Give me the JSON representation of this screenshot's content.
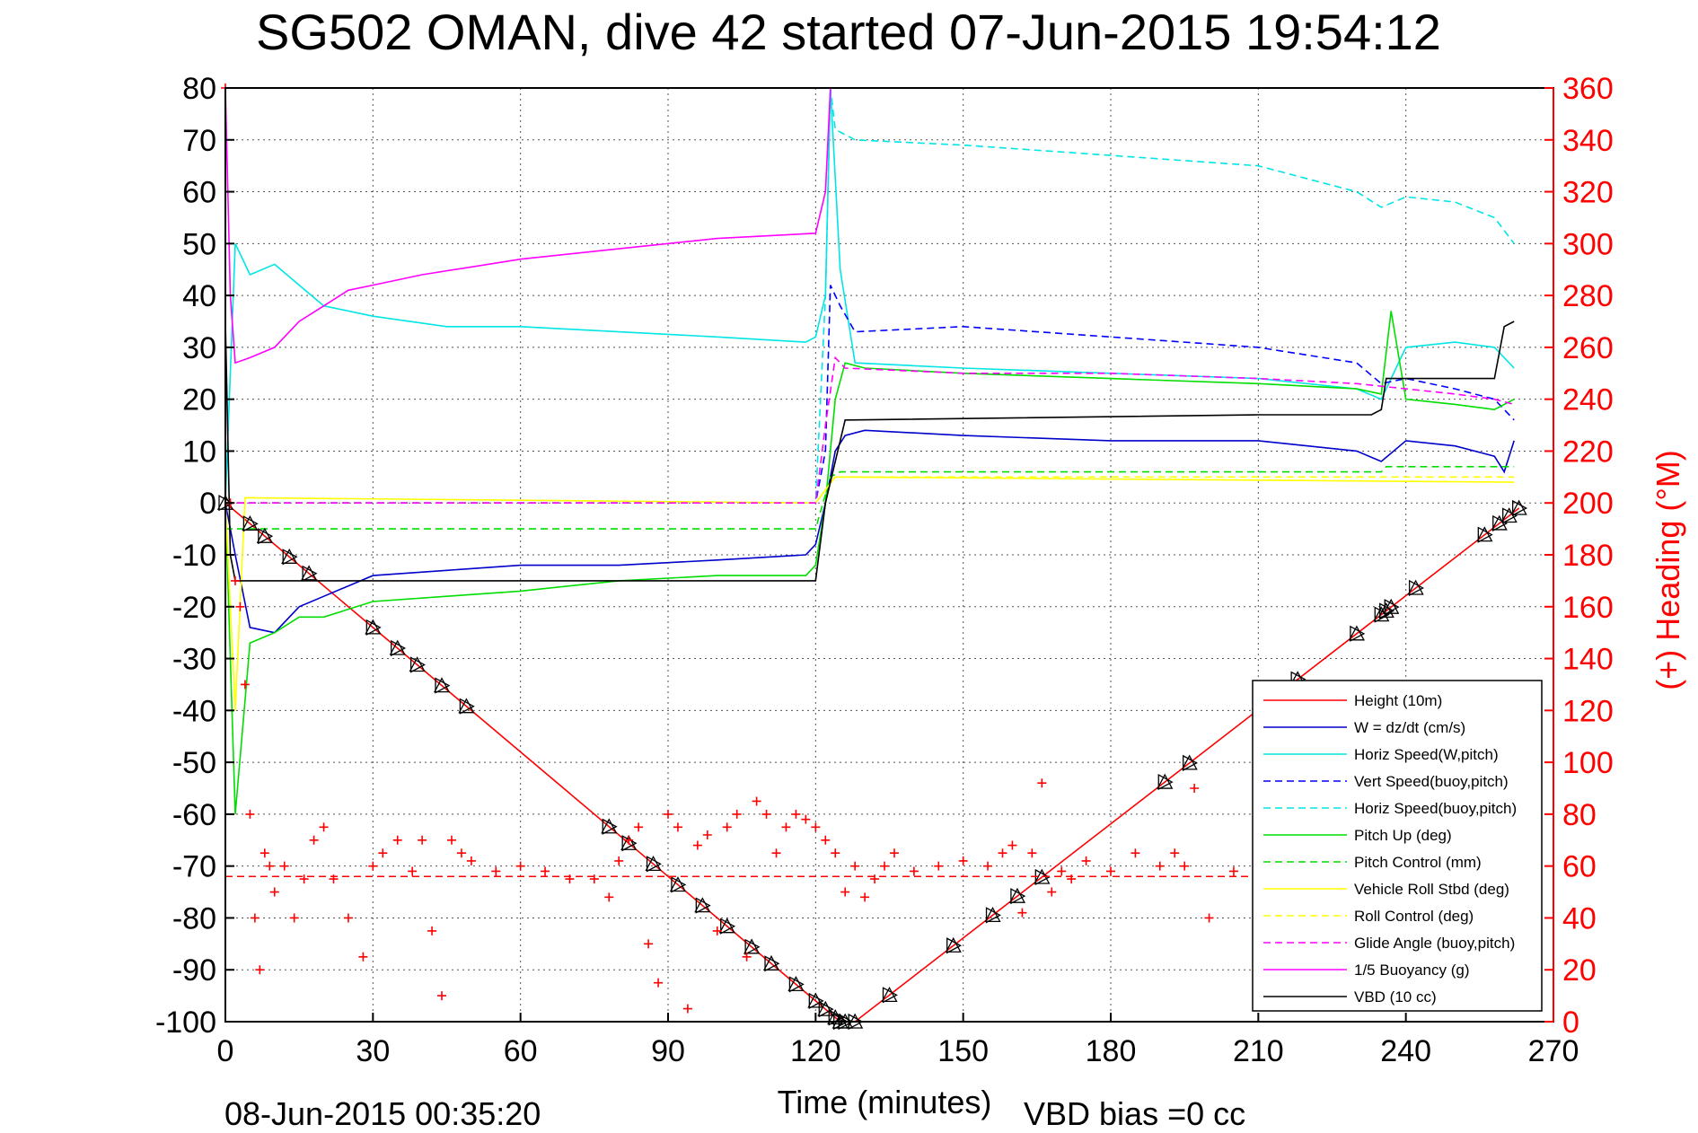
{
  "chart_data": {
    "type": "line",
    "title": "SG502 OMAN, dive 42 started 07-Jun-2015 19:54:12",
    "xlabel": "Time (minutes)",
    "ylabel_right": "(+) Heading (°M)",
    "footer_left": "08-Jun-2015 00:35:20",
    "footer_right": "VBD bias =0 cc",
    "xlim": [
      0,
      270
    ],
    "ylim": [
      -100,
      80
    ],
    "ylim_right": [
      0,
      360
    ],
    "x_ticks": [
      "0",
      "30",
      "60",
      "90",
      "120",
      "150",
      "180",
      "210",
      "240",
      "270"
    ],
    "y_ticks": [
      "80",
      "70",
      "60",
      "50",
      "40",
      "30",
      "20",
      "10",
      "0",
      "-10",
      "-20",
      "-30",
      "-40",
      "-50",
      "-60",
      "-70",
      "-80",
      "-90",
      "-100"
    ],
    "y_right_ticks": [
      "360",
      "340",
      "320",
      "300",
      "280",
      "260",
      "240",
      "220",
      "200",
      "180",
      "160",
      "140",
      "120",
      "100",
      "80",
      "60",
      "40",
      "20",
      "0"
    ],
    "grid": true,
    "legend_position": "lower-right",
    "series": [
      {
        "name": "Height (10m)",
        "color": "#ff0000",
        "style": "solid",
        "x": [
          0,
          125,
          128,
          263
        ],
        "y": [
          0,
          -100,
          -100,
          -1
        ]
      },
      {
        "name": "W = dz/dt (cm/s)",
        "color": "#0000cc",
        "style": "solid",
        "x": [
          0,
          2,
          5,
          10,
          15,
          20,
          30,
          45,
          60,
          80,
          100,
          118,
          120,
          122,
          124,
          126,
          130,
          150,
          180,
          210,
          230,
          235,
          240,
          250,
          258,
          260,
          262
        ],
        "y": [
          0,
          -10,
          -24,
          -25,
          -20,
          -18,
          -14,
          -13,
          -12,
          -12,
          -11,
          -10,
          -8,
          0,
          10,
          13,
          14,
          13,
          12,
          12,
          10,
          8,
          12,
          11,
          9,
          6,
          12
        ]
      },
      {
        "name": "Horiz Speed(W,pitch)",
        "color": "#00e5e5",
        "style": "solid",
        "x": [
          0,
          2,
          5,
          10,
          15,
          20,
          30,
          45,
          60,
          80,
          100,
          118,
          120,
          122,
          123,
          125,
          128,
          150,
          180,
          210,
          230,
          235,
          240,
          250,
          258,
          262
        ],
        "y": [
          0,
          50,
          44,
          46,
          42,
          38,
          36,
          34,
          34,
          33,
          32,
          31,
          32,
          40,
          80,
          45,
          27,
          26,
          25,
          24,
          22,
          20,
          30,
          31,
          30,
          26
        ]
      },
      {
        "name": "Vert Speed(buoy,pitch)",
        "color": "#0000ff",
        "style": "dashed",
        "x": [
          0,
          120,
          122,
          123,
          125,
          128,
          150,
          180,
          210,
          230,
          235,
          240,
          250,
          258,
          262
        ],
        "y": [
          0,
          0,
          10,
          42,
          38,
          33,
          34,
          32,
          30,
          27,
          23,
          24,
          22,
          20,
          16
        ]
      },
      {
        "name": "Horiz Speed(buoy,pitch)",
        "color": "#00e5e5",
        "style": "dashed",
        "x": [
          0,
          120,
          122,
          123,
          124,
          128,
          150,
          180,
          210,
          230,
          235,
          240,
          250,
          258,
          262
        ],
        "y": [
          0,
          0,
          40,
          80,
          72,
          70,
          69,
          67,
          65,
          60,
          57,
          59,
          58,
          55,
          50
        ]
      },
      {
        "name": "Pitch Up (deg)",
        "color": "#00dd00",
        "style": "solid",
        "x": [
          0,
          2,
          5,
          10,
          15,
          20,
          30,
          45,
          60,
          80,
          100,
          118,
          120,
          122,
          124,
          126,
          130,
          150,
          180,
          210,
          230,
          235,
          237,
          240,
          250,
          258,
          262
        ],
        "y": [
          0,
          -60,
          -27,
          -25,
          -22,
          -22,
          -19,
          -18,
          -17,
          -15,
          -14,
          -14,
          -12,
          0,
          20,
          27,
          26,
          25,
          24,
          23,
          22,
          21,
          37,
          20,
          19,
          18,
          20
        ]
      },
      {
        "name": "Pitch Control (mm)",
        "color": "#00dd00",
        "style": "dashed",
        "x": [
          0,
          120,
          123,
          125,
          235,
          236,
          262
        ],
        "y": [
          -5,
          -5,
          5,
          6,
          6,
          7,
          7
        ]
      },
      {
        "name": "Vehicle Roll Stbd (deg)",
        "color": "#ffff00",
        "style": "solid",
        "x": [
          0,
          2,
          4,
          120,
          124,
          126,
          262
        ],
        "y": [
          0,
          -40,
          1,
          0,
          5,
          5,
          4
        ]
      },
      {
        "name": "Roll Control (deg)",
        "color": "#ffff00",
        "style": "dashed",
        "x": [
          0,
          120,
          124,
          262
        ],
        "y": [
          0,
          0,
          5,
          5
        ]
      },
      {
        "name": "Glide Angle (buoy,pitch)",
        "color": "#ff00ff",
        "style": "dashed",
        "x": [
          0,
          120,
          122,
          124,
          126,
          150,
          180,
          210,
          230,
          240,
          250,
          258,
          262
        ],
        "y": [
          0,
          0,
          15,
          28,
          26,
          25,
          25,
          24,
          23,
          22,
          21,
          20,
          19
        ]
      },
      {
        "name": "1/5 Buoyancy (g)",
        "color": "#ff00ff",
        "style": "solid",
        "x": [
          0,
          1,
          2,
          5,
          10,
          15,
          20,
          25,
          30,
          40,
          60,
          80,
          100,
          120,
          122,
          123
        ],
        "y": [
          80,
          40,
          27,
          28,
          30,
          35,
          38,
          41,
          42,
          44,
          47,
          49,
          51,
          52,
          60,
          80
        ]
      },
      {
        "name": "VBD (10 cc)",
        "color": "#000000",
        "style": "solid",
        "x": [
          0,
          1,
          2,
          5,
          30,
          60,
          100,
          120,
          122,
          125,
          126,
          127,
          210,
          233,
          235,
          236,
          258,
          260,
          262
        ],
        "y": [
          35,
          -10,
          -15,
          -15,
          -15,
          -15,
          -15,
          -15,
          0,
          12,
          16,
          16,
          17,
          17,
          18,
          24,
          24,
          34,
          35
        ]
      }
    ],
    "heading_series": {
      "name": "(+) Heading",
      "color": "#ff0000",
      "axis": "right",
      "mean": 56,
      "x": [
        0,
        1,
        2,
        3,
        4,
        5,
        6,
        7,
        8,
        9,
        10,
        12,
        14,
        16,
        18,
        20,
        22,
        25,
        28,
        30,
        32,
        35,
        38,
        40,
        42,
        44,
        46,
        48,
        50,
        55,
        60,
        65,
        70,
        75,
        78,
        80,
        82,
        84,
        86,
        88,
        90,
        92,
        94,
        96,
        98,
        100,
        102,
        104,
        106,
        108,
        110,
        112,
        114,
        116,
        118,
        120,
        122,
        124,
        126,
        128,
        130,
        132,
        134,
        136,
        140,
        145,
        150,
        155,
        158,
        160,
        162,
        164,
        166,
        168,
        170,
        172,
        175,
        180,
        185,
        190,
        193,
        195,
        197,
        200,
        205,
        210,
        215,
        220,
        225,
        230,
        235,
        240,
        245,
        250,
        255,
        260
      ],
      "y": [
        360,
        200,
        170,
        160,
        130,
        80,
        40,
        20,
        65,
        60,
        50,
        60,
        40,
        55,
        70,
        75,
        55,
        40,
        25,
        60,
        65,
        70,
        58,
        70,
        35,
        10,
        70,
        65,
        62,
        58,
        60,
        58,
        55,
        55,
        48,
        62,
        70,
        75,
        30,
        15,
        80,
        75,
        5,
        68,
        72,
        35,
        75,
        80,
        25,
        85,
        80,
        65,
        75,
        80,
        78,
        75,
        70,
        65,
        50,
        60,
        48,
        55,
        60,
        65,
        58,
        60,
        62,
        60,
        65,
        68,
        42,
        65,
        92,
        50,
        58,
        55,
        62,
        58,
        65,
        60,
        65,
        60,
        90,
        40,
        58,
        65,
        62,
        60,
        58,
        60,
        58,
        62,
        60,
        58,
        60,
        62
      ]
    },
    "height_markers_x": [
      0,
      5,
      8,
      13,
      17,
      30,
      35,
      39,
      44,
      49,
      78,
      82,
      87,
      92,
      97,
      102,
      107,
      111,
      116,
      120,
      122,
      124,
      125,
      126,
      128,
      135,
      148,
      156,
      161,
      166,
      191,
      196,
      213,
      218,
      230,
      235,
      236,
      237,
      242,
      256,
      259,
      261,
      263
    ]
  }
}
